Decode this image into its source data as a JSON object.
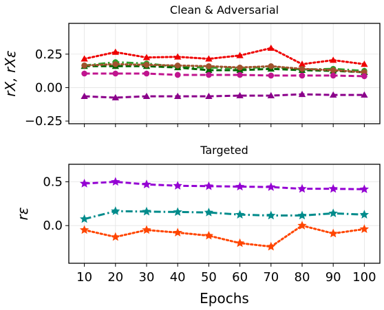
{
  "colors": {
    "red": "#ee0000",
    "green_dashdot": "#2ca02c",
    "darkgreen": "#006400",
    "brown": "#a0522d",
    "magenta": "#c0158f",
    "purple": "#8b008b",
    "violet": "#9400d3",
    "teal": "#008b8b",
    "orangered": "#ff4500"
  },
  "chart_data": [
    {
      "type": "line",
      "title": "Clean & Adversarial",
      "ylabel": "r_X, r_X_ε",
      "ylabel_display": "rX, rXε",
      "xlim": [
        5,
        105
      ],
      "ylim": [
        -0.27,
        0.48
      ],
      "x": [
        10,
        20,
        30,
        40,
        50,
        60,
        70,
        80,
        90,
        100
      ],
      "xticks": [
        "10",
        "20",
        "30",
        "40",
        "50",
        "60",
        "70",
        "80",
        "90",
        "100"
      ],
      "yticks": [
        -0.25,
        0.0,
        0.25
      ],
      "ytick_labels": [
        "−0.25",
        "0.00",
        "0.25"
      ],
      "grid": true,
      "series": [
        {
          "values": [
            0.215,
            0.265,
            0.225,
            0.23,
            0.215,
            0.24,
            0.295,
            0.175,
            0.205,
            0.175
          ],
          "color": "red",
          "dash": "dotted",
          "marker": "triangle-up"
        },
        {
          "values": [
            0.165,
            0.19,
            0.18,
            0.155,
            0.15,
            0.145,
            0.155,
            0.135,
            0.14,
            0.125
          ],
          "color": "green_dashdot",
          "dash": "dashdot",
          "marker": "circle"
        },
        {
          "values": [
            0.16,
            0.16,
            0.16,
            0.15,
            0.13,
            0.13,
            0.14,
            0.13,
            0.125,
            0.115
          ],
          "color": "darkgreen",
          "dash": "dashed",
          "marker": "triangle-up"
        },
        {
          "values": [
            0.165,
            0.175,
            0.17,
            0.165,
            0.16,
            0.15,
            0.16,
            0.14,
            0.13,
            0.115
          ],
          "color": "brown",
          "dash": "dotted",
          "marker": "circle"
        },
        {
          "values": [
            0.105,
            0.105,
            0.105,
            0.095,
            0.095,
            0.095,
            0.09,
            0.09,
            0.09,
            0.085
          ],
          "color": "magenta",
          "dash": "dashed",
          "marker": "circle"
        },
        {
          "values": [
            -0.065,
            -0.075,
            -0.065,
            -0.065,
            -0.065,
            -0.06,
            -0.06,
            -0.05,
            -0.055,
            -0.055
          ],
          "color": "purple",
          "dash": "dashed",
          "marker": "triangle-up"
        }
      ]
    },
    {
      "type": "line",
      "title": "Targeted",
      "ylabel": "r_ε",
      "ylabel_display": "rε",
      "xlabel": "Epochs",
      "xlim": [
        5,
        105
      ],
      "ylim": [
        -0.43,
        0.7
      ],
      "x": [
        10,
        20,
        30,
        40,
        50,
        60,
        70,
        80,
        90,
        100
      ],
      "xticks": [
        "10",
        "20",
        "30",
        "40",
        "50",
        "60",
        "70",
        "80",
        "90",
        "100"
      ],
      "yticks": [
        0.0,
        0.5
      ],
      "ytick_labels": [
        "0.0",
        "0.5"
      ],
      "grid": true,
      "series": [
        {
          "values": [
            0.48,
            0.5,
            0.47,
            0.455,
            0.45,
            0.445,
            0.44,
            0.42,
            0.42,
            0.415
          ],
          "color": "violet",
          "dash": "dashed",
          "marker": "star"
        },
        {
          "values": [
            0.075,
            0.165,
            0.16,
            0.155,
            0.15,
            0.125,
            0.115,
            0.115,
            0.14,
            0.125
          ],
          "color": "teal",
          "dash": "dashdot",
          "marker": "star"
        },
        {
          "values": [
            -0.05,
            -0.13,
            -0.05,
            -0.08,
            -0.115,
            -0.2,
            -0.24,
            0.0,
            -0.09,
            -0.04
          ],
          "color": "orangered",
          "dash": "dotted",
          "marker": "star"
        }
      ]
    }
  ]
}
